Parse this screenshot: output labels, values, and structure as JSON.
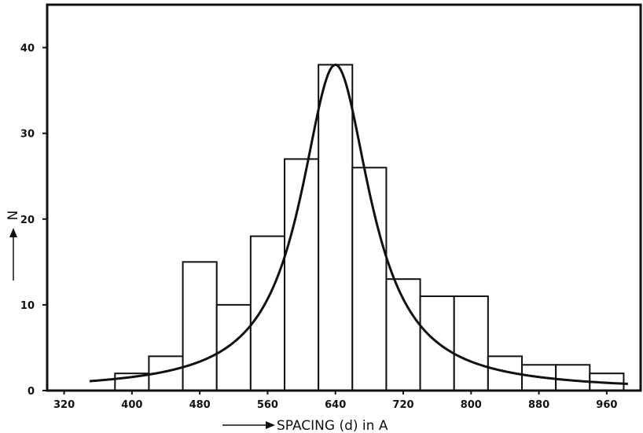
{
  "chart_data": {
    "type": "bar",
    "title": "",
    "xlabel": "SPACING (d) in A",
    "ylabel": "N",
    "xlim": [
      300,
      1000
    ],
    "ylim": [
      0,
      45
    ],
    "x_ticks": [
      320,
      400,
      480,
      560,
      640,
      720,
      800,
      880,
      960
    ],
    "y_ticks": [
      0,
      10,
      20,
      30,
      40
    ],
    "bin_width": 40,
    "bins": [
      {
        "start": 380,
        "end": 420,
        "value": 2
      },
      {
        "start": 420,
        "end": 460,
        "value": 4
      },
      {
        "start": 460,
        "end": 500,
        "value": 15
      },
      {
        "start": 500,
        "end": 540,
        "value": 10
      },
      {
        "start": 540,
        "end": 580,
        "value": 18
      },
      {
        "start": 580,
        "end": 620,
        "value": 27
      },
      {
        "start": 620,
        "end": 660,
        "value": 38
      },
      {
        "start": 660,
        "end": 700,
        "value": 26
      },
      {
        "start": 700,
        "end": 740,
        "value": 13
      },
      {
        "start": 740,
        "end": 780,
        "value": 11
      },
      {
        "start": 780,
        "end": 820,
        "value": 11
      },
      {
        "start": 820,
        "end": 860,
        "value": 4
      },
      {
        "start": 860,
        "end": 900,
        "value": 3
      },
      {
        "start": 900,
        "end": 940,
        "value": 3
      },
      {
        "start": 940,
        "end": 980,
        "value": 2
      }
    ],
    "fit_curve": {
      "type": "lorentzian",
      "center": 640,
      "peak": 38,
      "half_width": 50,
      "x_range": [
        350,
        985
      ]
    },
    "grid": false,
    "legend": "none"
  }
}
